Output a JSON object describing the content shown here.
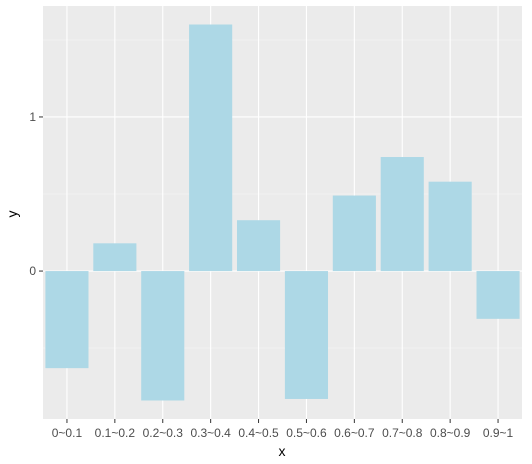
{
  "chart_data": {
    "type": "bar",
    "categories": [
      "0~0.1",
      "0.1~0.2",
      "0.2~0.3",
      "0.3~0.4",
      "0.4~0.5",
      "0.5~0.6",
      "0.6~0.7",
      "0.7~0.8",
      "0.8~0.9",
      "0.9~1"
    ],
    "values": [
      -0.63,
      0.18,
      -0.84,
      1.6,
      0.33,
      -0.83,
      0.49,
      0.74,
      0.58,
      -0.31
    ],
    "xlabel": "x",
    "ylabel": "y",
    "ylim": [
      -0.96,
      1.72
    ],
    "yticks": [
      0,
      1
    ],
    "ytick_labels": [
      "0",
      "1"
    ],
    "grid": true,
    "colors": {
      "bar": "#add8e6",
      "panel": "#ebebeb",
      "grid_major": "#ffffff"
    }
  }
}
